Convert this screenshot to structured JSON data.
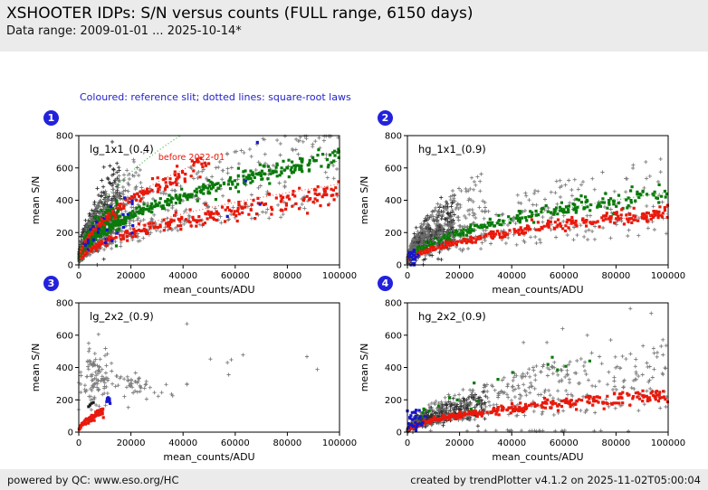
{
  "header": {
    "title": "XSHOOTER IDPs: S/N versus counts (FULL range, 6150 days)",
    "subtitle": "Data range: 2009-01-01 ... 2025-10-14*"
  },
  "note": {
    "text": "Coloured: reference slit; dotted lines: square-root laws",
    "color": "#2222cc"
  },
  "footer": {
    "left": "powered by QC: www.eso.org/HC",
    "right": "created by trendPlotter v4.1.2 on 2025-11-02T05:00:04"
  },
  "palette": {
    "band_bg": "#ebebeb",
    "badge_blue": "#2222dd",
    "note_blue": "#2222cc",
    "point_green": "#0a7a0a",
    "point_red": "#e8190c",
    "point_blue": "#1616cc",
    "point_gray": "#6f6f6f",
    "point_black": "#1b1b1b",
    "guide_green": "#2db32d",
    "guide_red": "#ff4433"
  },
  "chart_data": [
    {
      "type": "scatter",
      "badge": "1",
      "title": "lg_1x1_(0.4)",
      "xlabel": "mean_counts/ADU",
      "ylabel": "mean S/N",
      "xlim": [
        0,
        100000
      ],
      "ylim": [
        0,
        800
      ],
      "xtick_values": [
        0,
        20000,
        40000,
        60000,
        80000,
        100000
      ],
      "xtick_labels": [
        "0",
        "20000",
        "40000",
        "60000",
        "80000",
        "100000"
      ],
      "ytick_values": [
        0,
        200,
        400,
        600,
        800
      ],
      "ytick_labels": [
        "0",
        "200",
        "400",
        "600",
        "800"
      ],
      "annotation": {
        "text": "before 2022-01",
        "x": 30500,
        "y": 648,
        "color": "#e8190c"
      },
      "guides": [
        {
          "color": "#2db32d",
          "a": 4.05,
          "xmax": 39500
        },
        {
          "color": "#ff4433",
          "a": 2.95,
          "xmax": 55000
        },
        {
          "color": "#ff4433",
          "a": 1.58,
          "xmax": 100000
        }
      ],
      "series": [
        {
          "name": "all-slits-black",
          "color": "#1b1b1b",
          "marker": "plus",
          "gen": {
            "type": "sqrt",
            "n": 420,
            "xmin": 200,
            "xmax": 16000,
            "xpow": 1.8,
            "a": 3.3,
            "mode": "g",
            "s": 0.3,
            "seed": 11
          }
        },
        {
          "name": "all-slits-gray-low",
          "color": "#6f6f6f",
          "marker": "plus",
          "gen": {
            "type": "sqrt",
            "n": 380,
            "xmin": 200,
            "xmax": 25000,
            "xpow": 1.6,
            "a": 3.0,
            "mode": "u",
            "s": [
              0.3,
              1.5
            ],
            "seed": 12
          }
        },
        {
          "name": "all-slits-gray-wide",
          "color": "#6f6f6f",
          "marker": "plus",
          "gen": {
            "type": "sqrt",
            "n": 330,
            "xmin": 2000,
            "xmax": 100000,
            "xpow": 1.3,
            "a": 2.35,
            "mode": "u",
            "s": [
              0.45,
              1.25
            ],
            "seed": 13
          }
        },
        {
          "name": "refslit-green-band",
          "color": "#0a7a0a",
          "marker": "square",
          "gen": {
            "type": "sqrt",
            "n": 330,
            "xmin": 1000,
            "xmax": 100000,
            "xpow": 1.25,
            "a": 2.12,
            "mode": "g",
            "s": 0.05,
            "seed": 14
          }
        },
        {
          "name": "refslit-green-low",
          "color": "#0a7a0a",
          "marker": "square",
          "gen": {
            "type": "sqrt",
            "n": 200,
            "xmin": 300,
            "xmax": 16000,
            "xpow": 1.5,
            "a": 2.6,
            "mode": "g",
            "s": 0.18,
            "seed": 15
          }
        },
        {
          "name": "refslit-red-current",
          "color": "#e8190c",
          "marker": "square",
          "gen": {
            "type": "sqrt",
            "n": 260,
            "xmin": 1000,
            "xmax": 100000,
            "xpow": 1.4,
            "a": 1.38,
            "mode": "g",
            "s": 0.09,
            "seed": 16
          }
        },
        {
          "name": "refslit-red-before-2022",
          "color": "#e8190c",
          "marker": "square",
          "gen": {
            "type": "sqrt",
            "n": 130,
            "xmin": 500,
            "xmax": 50000,
            "xpow": 1.3,
            "a": 2.85,
            "mode": "g",
            "s": 0.05,
            "seed": 17
          }
        },
        {
          "name": "refslit-blue",
          "color": "#1616cc",
          "marker": "square",
          "gen": {
            "type": "sqrt",
            "n": 26,
            "xmin": 500,
            "xmax": 22000,
            "xpow": 1.2,
            "a": 2.2,
            "mode": "u",
            "s": [
              0.5,
              1.6
            ],
            "seed": 18
          }
        },
        {
          "name": "refslit-blue-outliers",
          "color": "#1616cc",
          "marker": "square",
          "points": [
            [
              64000,
              520
            ],
            [
              68500,
              758
            ],
            [
              69500,
              375
            ],
            [
              57000,
              300
            ]
          ]
        }
      ]
    },
    {
      "type": "scatter",
      "badge": "2",
      "title": "hg_1x1_(0.9)",
      "xlabel": "mean_counts/ADU",
      "ylabel": "mean S/N",
      "xlim": [
        0,
        100000
      ],
      "ylim": [
        0,
        800
      ],
      "xtick_values": [
        0,
        20000,
        40000,
        60000,
        80000,
        100000
      ],
      "xtick_labels": [
        "0",
        "20000",
        "40000",
        "60000",
        "80000",
        "100000"
      ],
      "ytick_values": [
        0,
        200,
        400,
        600,
        800
      ],
      "ytick_labels": [
        "0",
        "200",
        "400",
        "600",
        "800"
      ],
      "guides": [
        {
          "color": "#2db32d",
          "a": 1.42,
          "xmax": 100000
        },
        {
          "color": "#ff4433",
          "a": 1.0,
          "xmax": 100000
        }
      ],
      "series": [
        {
          "name": "all-slits-black",
          "color": "#1b1b1b",
          "marker": "plus",
          "gen": {
            "type": "sqrt",
            "n": 430,
            "xmin": 200,
            "xmax": 18000,
            "xpow": 1.7,
            "a": 1.95,
            "mode": "g",
            "s": 0.35,
            "seed": 21
          }
        },
        {
          "name": "all-slits-gray-low",
          "color": "#6f6f6f",
          "marker": "plus",
          "gen": {
            "type": "sqrt",
            "n": 300,
            "xmin": 200,
            "xmax": 30000,
            "xpow": 1.6,
            "a": 2.2,
            "mode": "u",
            "s": [
              0.35,
              1.6
            ],
            "seed": 22
          }
        },
        {
          "name": "all-slits-gray-wide",
          "color": "#6f6f6f",
          "marker": "plus",
          "gen": {
            "type": "sqrt",
            "n": 260,
            "xmin": 3000,
            "xmax": 100000,
            "xpow": 1.35,
            "a": 1.45,
            "mode": "u",
            "s": [
              0.4,
              1.5
            ],
            "seed": 23
          }
        },
        {
          "name": "refslit-green-band",
          "color": "#0a7a0a",
          "marker": "square",
          "gen": {
            "type": "sqrt",
            "n": 250,
            "xmin": 1000,
            "xmax": 100000,
            "xpow": 1.3,
            "a": 1.4,
            "mode": "g",
            "s": 0.07,
            "seed": 24
          }
        },
        {
          "name": "refslit-red-band",
          "color": "#e8190c",
          "marker": "square",
          "gen": {
            "type": "sqrt",
            "n": 300,
            "xmin": 800,
            "xmax": 100000,
            "xpow": 1.35,
            "a": 1.01,
            "mode": "g",
            "s": 0.07,
            "seed": 25
          }
        },
        {
          "name": "refslit-blue-cluster",
          "color": "#1616cc",
          "marker": "square",
          "gen": {
            "type": "cluster",
            "n": 35,
            "cx": 2200,
            "cy": 45,
            "sx": 900,
            "sy": 28,
            "seed": 26
          }
        }
      ]
    },
    {
      "type": "scatter",
      "badge": "3",
      "title": "lg_2x2_(0.9)",
      "xlabel": "mean_counts/ADU",
      "ylabel": "mean S/N",
      "xlim": [
        0,
        100000
      ],
      "ylim": [
        0,
        800
      ],
      "xtick_values": [
        0,
        20000,
        40000,
        60000,
        80000,
        100000
      ],
      "xtick_labels": [
        "0",
        "20000",
        "40000",
        "60000",
        "80000",
        "100000"
      ],
      "ytick_values": [
        0,
        200,
        400,
        600,
        800
      ],
      "ytick_labels": [
        "0",
        "200",
        "400",
        "600",
        "800"
      ],
      "guides": [],
      "series": [
        {
          "name": "all-slits-gray-cluster",
          "color": "#6f6f6f",
          "marker": "plus",
          "gen": {
            "type": "cluster",
            "n": 110,
            "cx": 6500,
            "cy": 340,
            "sx": 3200,
            "sy": 85,
            "seed": 31
          }
        },
        {
          "name": "all-slits-gray-string",
          "color": "#6f6f6f",
          "marker": "plus",
          "gen": {
            "type": "cluster",
            "n": 38,
            "cx": 21500,
            "cy": 300,
            "sx": 3800,
            "sy": 28,
            "seed": 32
          }
        },
        {
          "name": "all-slits-gray-isolated",
          "color": "#6f6f6f",
          "marker": "plus",
          "points": [
            [
              41500,
              670
            ],
            [
              50500,
              452
            ],
            [
              57000,
              430
            ],
            [
              58500,
              448
            ],
            [
              63000,
              478
            ],
            [
              57500,
              355
            ],
            [
              87500,
              467
            ],
            [
              91500,
              388
            ],
            [
              33500,
              295
            ],
            [
              41500,
              295
            ],
            [
              31800,
              245
            ],
            [
              30500,
              222
            ],
            [
              23500,
              252
            ],
            [
              26000,
              205
            ],
            [
              36000,
              225
            ],
            [
              41500,
              298
            ],
            [
              19000,
              153
            ]
          ]
        },
        {
          "name": "refslit-red-curve",
          "color": "#e8190c",
          "marker": "square",
          "gen": {
            "type": "sqrt",
            "n": 70,
            "xmin": 100,
            "xmax": 9500,
            "xpow": 1.3,
            "a": 1.3,
            "mode": "g",
            "s": 0.13,
            "seed": 33
          }
        },
        {
          "name": "refslit-blue-cluster",
          "color": "#1616cc",
          "marker": "square",
          "gen": {
            "type": "cluster",
            "n": 12,
            "cx": 11200,
            "cy": 203,
            "sx": 450,
            "sy": 9,
            "seed": 34
          }
        },
        {
          "name": "black-few",
          "color": "#1b1b1b",
          "marker": "square",
          "points": [
            [
              4300,
              168
            ],
            [
              4900,
              178
            ],
            [
              3800,
              158
            ],
            [
              5600,
              183
            ]
          ]
        }
      ]
    },
    {
      "type": "scatter",
      "badge": "4",
      "title": "hg_2x2_(0.9)",
      "xlabel": "mean_counts/ADU",
      "ylabel": "mean S/N",
      "xlim": [
        0,
        100000
      ],
      "ylim": [
        0,
        800
      ],
      "xtick_values": [
        0,
        20000,
        40000,
        60000,
        80000,
        100000
      ],
      "xtick_labels": [
        "0",
        "20000",
        "40000",
        "60000",
        "80000",
        "100000"
      ],
      "ytick_values": [
        0,
        200,
        400,
        600,
        800
      ],
      "ytick_labels": [
        "0",
        "200",
        "400",
        "600",
        "800"
      ],
      "guides": [],
      "series": [
        {
          "name": "all-slits-black-low",
          "color": "#1b1b1b",
          "marker": "plus",
          "gen": {
            "type": "sqrt",
            "n": 420,
            "xmin": 200,
            "xmax": 30000,
            "xpow": 1.9,
            "a": 1.0,
            "mode": "g",
            "s": 0.3,
            "seed": 41
          }
        },
        {
          "name": "all-slits-gray-wide",
          "color": "#6f6f6f",
          "marker": "plus",
          "gen": {
            "type": "sqrt",
            "n": 360,
            "xmin": 2000,
            "xmax": 100000,
            "xpow": 1.3,
            "a": 1.28,
            "mode": "u",
            "s": [
              0.35,
              1.45
            ],
            "seed": 42
          }
        },
        {
          "name": "all-slits-gray-outliers",
          "color": "#6f6f6f",
          "marker": "plus",
          "points": [
            [
              85500,
              765
            ],
            [
              93500,
              735
            ],
            [
              99000,
              395
            ],
            [
              78000,
              570
            ],
            [
              59500,
              640
            ],
            [
              69000,
              600
            ],
            [
              53500,
              555
            ],
            [
              44500,
              555
            ]
          ]
        },
        {
          "name": "all-slits-gray-bottom-row",
          "color": "#6f6f6f",
          "marker": "plus",
          "gen": {
            "type": "cluster",
            "n": 26,
            "cx": 40000,
            "cy": 8,
            "sx": 20000,
            "sy": 2,
            "seed": 43
          }
        },
        {
          "name": "refslit-red-band",
          "color": "#e8190c",
          "marker": "square",
          "gen": {
            "type": "sqrt",
            "n": 320,
            "xmin": 500,
            "xmax": 100000,
            "xpow": 1.3,
            "a": 0.72,
            "mode": "g",
            "s": 0.1,
            "seed": 44
          }
        },
        {
          "name": "refslit-green-sparse",
          "color": "#0a7a0a",
          "marker": "square",
          "gen": {
            "type": "sqrt",
            "n": 20,
            "xmin": 4000,
            "xmax": 72000,
            "xpow": 1.1,
            "a": 1.55,
            "mode": "g",
            "s": 0.2,
            "seed": 45
          }
        },
        {
          "name": "refslit-blue-cluster",
          "color": "#1616cc",
          "marker": "square",
          "gen": {
            "type": "cluster",
            "n": 28,
            "cx": 3200,
            "cy": 80,
            "sx": 1800,
            "sy": 45,
            "seed": 46
          }
        }
      ]
    }
  ]
}
